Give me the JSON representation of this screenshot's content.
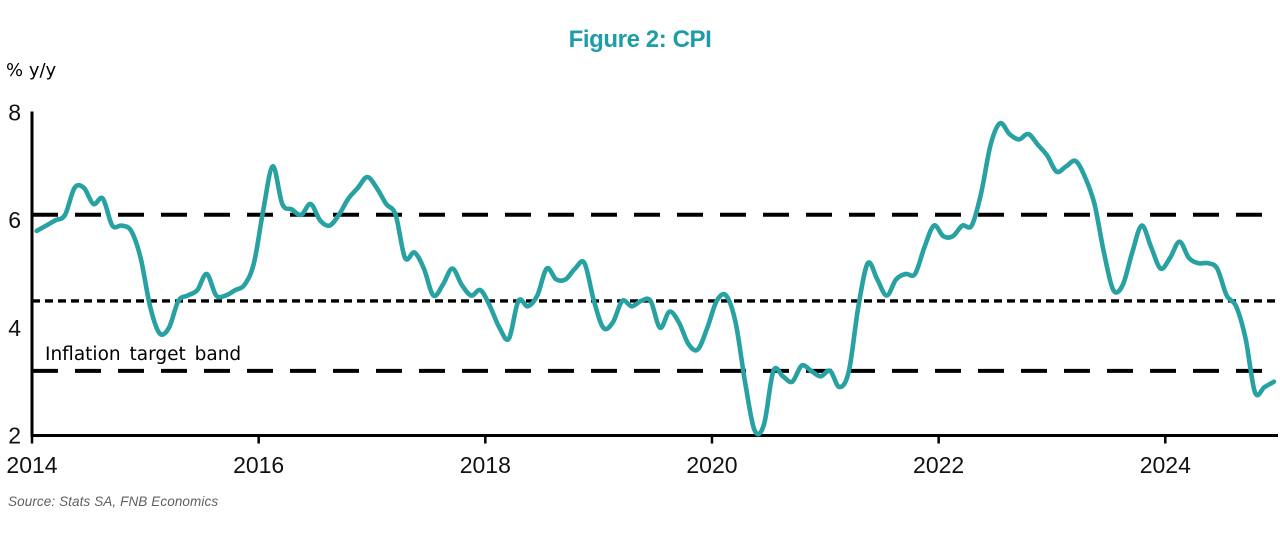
{
  "page": {
    "background": "#ffffff"
  },
  "chart": {
    "title": "Figure 2: CPI",
    "title_color": "#1C9DA8",
    "y_axis_unit_label": "% y/y",
    "band_annotation": "Inflation target band",
    "source_note": "Source: Stats SA, FNB Economics"
  },
  "colors": {
    "line": "#28A1A2",
    "axis": "#000000",
    "reference_line": "#000000",
    "tick_label": "#111111",
    "source_text": "#5f5f5f"
  },
  "chart_data": {
    "type": "line",
    "title": "Figure 2: CPI",
    "ylabel": "% y/y",
    "ylim": [
      2,
      8
    ],
    "y_ticks": [
      8,
      6,
      4,
      2
    ],
    "x_ticks": [
      2014,
      2016,
      2018,
      2020,
      2022,
      2024
    ],
    "grid": false,
    "legend_position": "none",
    "reference_lines": [
      {
        "name": "target-band-upper",
        "value": 6.1,
        "style": "long-dash",
        "color": "#000000"
      },
      {
        "name": "target-band-midpoint",
        "value": 4.5,
        "style": "dotted",
        "color": "#000000"
      },
      {
        "name": "target-band-lower",
        "value": 3.2,
        "style": "long-dash",
        "color": "#000000"
      }
    ],
    "annotations": [
      {
        "text": "Inflation target band",
        "near_value": 3.55,
        "near_year": 2014.1
      }
    ],
    "series": [
      {
        "name": "CPI",
        "color": "#28A1A2",
        "start_month": "2014-01",
        "frequency": "monthly",
        "values": [
          5.8,
          5.9,
          6.0,
          6.1,
          6.6,
          6.6,
          6.3,
          6.4,
          5.9,
          5.9,
          5.8,
          5.3,
          4.4,
          3.9,
          4.0,
          4.5,
          4.6,
          4.7,
          5.0,
          4.6,
          4.6,
          4.7,
          4.8,
          5.2,
          6.2,
          7.0,
          6.3,
          6.2,
          6.1,
          6.3,
          6.0,
          5.9,
          6.1,
          6.4,
          6.6,
          6.8,
          6.6,
          6.3,
          6.1,
          5.3,
          5.4,
          5.1,
          4.6,
          4.8,
          5.1,
          4.8,
          4.6,
          4.7,
          4.4,
          4.0,
          3.8,
          4.5,
          4.4,
          4.6,
          5.1,
          4.9,
          4.9,
          5.1,
          5.2,
          4.5,
          4.0,
          4.1,
          4.5,
          4.4,
          4.5,
          4.5,
          4.0,
          4.3,
          4.1,
          3.7,
          3.6,
          4.0,
          4.5,
          4.6,
          4.1,
          3.0,
          2.1,
          2.2,
          3.2,
          3.1,
          3.0,
          3.3,
          3.2,
          3.1,
          3.2,
          2.9,
          3.2,
          4.4,
          5.2,
          4.9,
          4.6,
          4.9,
          5.0,
          5.0,
          5.5,
          5.9,
          5.7,
          5.7,
          5.9,
          5.9,
          6.5,
          7.4,
          7.8,
          7.6,
          7.5,
          7.6,
          7.4,
          7.2,
          6.9,
          7.0,
          7.1,
          6.8,
          6.3,
          5.4,
          4.7,
          4.8,
          5.4,
          5.9,
          5.5,
          5.1,
          5.3,
          5.6,
          5.3,
          5.2,
          5.2,
          5.1,
          4.6,
          4.4,
          3.8,
          2.8,
          2.9,
          3.0
        ]
      }
    ]
  }
}
